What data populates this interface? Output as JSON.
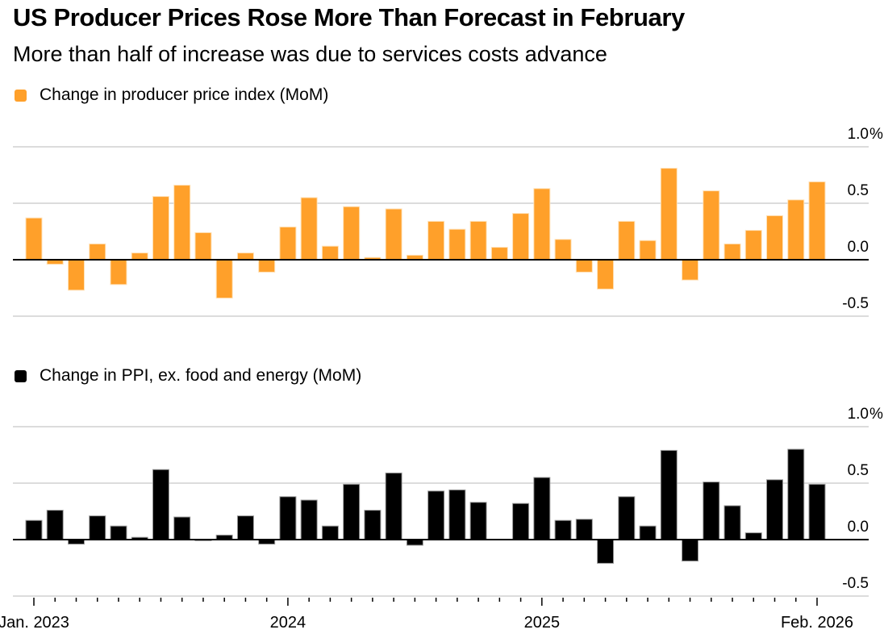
{
  "header": {
    "title": "US Producer Prices Rose More Than Forecast in February",
    "subtitle": "More than half of increase was due to services costs advance"
  },
  "colors": {
    "ppi": "#FFA02A",
    "core": "#000000",
    "grid": "#d0d0d0",
    "axis": "#000000"
  },
  "chart_data": [
    {
      "type": "bar",
      "id": "ppi",
      "title": "Change in producer price index (MoM)",
      "legend": "Change in producer price index (MoM)",
      "legend_position": "top-left",
      "xlabel": "",
      "ylabel": "",
      "ylim": [
        -0.5,
        1.0
      ],
      "yticks": [
        1.0,
        0.5,
        0.0,
        -0.5
      ],
      "ytick_labels": [
        "1.0%",
        "0.5",
        "0.0",
        "-0.5"
      ],
      "grid": true,
      "categories": [
        "Jan 2023",
        "Feb 2023",
        "Mar 2023",
        "Apr 2023",
        "May 2023",
        "Jun 2023",
        "Jul 2023",
        "Aug 2023",
        "Sep 2023",
        "Oct 2023",
        "Nov 2023",
        "Dec 2023",
        "Jan 2024",
        "Feb 2024",
        "Mar 2024",
        "Apr 2024",
        "May 2024",
        "Jun 2024",
        "Jul 2024",
        "Aug 2024",
        "Sep 2024",
        "Oct 2024",
        "Nov 2024",
        "Dec 2024",
        "Jan 2025",
        "Feb 2025",
        "Mar 2025",
        "Apr 2025",
        "May 2025",
        "Jun 2025",
        "Jul 2025",
        "Aug 2025",
        "Sep 2025",
        "Oct 2025",
        "Nov 2025",
        "Dec 2025",
        "Jan 2026",
        "Feb 2026"
      ],
      "values": [
        0.37,
        -0.04,
        -0.27,
        0.14,
        -0.22,
        0.06,
        0.56,
        0.66,
        0.24,
        -0.34,
        0.06,
        -0.11,
        0.29,
        0.55,
        0.12,
        0.47,
        0.02,
        0.45,
        0.04,
        0.34,
        0.27,
        0.34,
        0.11,
        0.41,
        0.63,
        0.18,
        -0.11,
        -0.26,
        0.34,
        0.17,
        0.81,
        -0.18,
        0.61,
        0.14,
        0.26,
        0.39,
        0.53,
        0.69
      ]
    },
    {
      "type": "bar",
      "id": "core",
      "title": "Change in PPI, ex. food and energy (MoM)",
      "legend": "Change in PPI, ex. food and energy (MoM)",
      "legend_position": "top-left",
      "xlabel": "",
      "ylabel": "",
      "ylim": [
        -0.5,
        1.0
      ],
      "yticks": [
        1.0,
        0.5,
        0.0,
        -0.5
      ],
      "ytick_labels": [
        "1.0%",
        "0.5",
        "0.0",
        "-0.5"
      ],
      "grid": true,
      "categories": [
        "Jan 2023",
        "Feb 2023",
        "Mar 2023",
        "Apr 2023",
        "May 2023",
        "Jun 2023",
        "Jul 2023",
        "Aug 2023",
        "Sep 2023",
        "Oct 2023",
        "Nov 2023",
        "Dec 2023",
        "Jan 2024",
        "Feb 2024",
        "Mar 2024",
        "Apr 2024",
        "May 2024",
        "Jun 2024",
        "Jul 2024",
        "Aug 2024",
        "Sep 2024",
        "Oct 2024",
        "Nov 2024",
        "Dec 2024",
        "Jan 2025",
        "Feb 2025",
        "Mar 2025",
        "Apr 2025",
        "May 2025",
        "Jun 2025",
        "Jul 2025",
        "Aug 2025",
        "Sep 2025",
        "Oct 2025",
        "Nov 2025",
        "Dec 2025",
        "Jan 2026",
        "Feb 2026"
      ],
      "values": [
        0.17,
        0.26,
        -0.04,
        0.21,
        0.12,
        0.02,
        0.62,
        0.2,
        -0.01,
        0.04,
        0.21,
        -0.04,
        0.38,
        0.35,
        0.12,
        0.49,
        0.26,
        0.59,
        -0.05,
        0.43,
        0.44,
        0.33,
        0.0,
        0.32,
        0.55,
        0.17,
        0.18,
        -0.21,
        0.38,
        0.12,
        0.79,
        -0.19,
        0.51,
        0.3,
        0.06,
        0.53,
        0.8,
        0.49
      ]
    }
  ],
  "x_axis": {
    "major_ticks": [
      {
        "index": 0,
        "label": "Jan. 2023"
      },
      {
        "index": 12,
        "label": "2024"
      },
      {
        "index": 24,
        "label": "2025"
      },
      {
        "index": 37,
        "label": "Feb. 2026"
      }
    ]
  }
}
